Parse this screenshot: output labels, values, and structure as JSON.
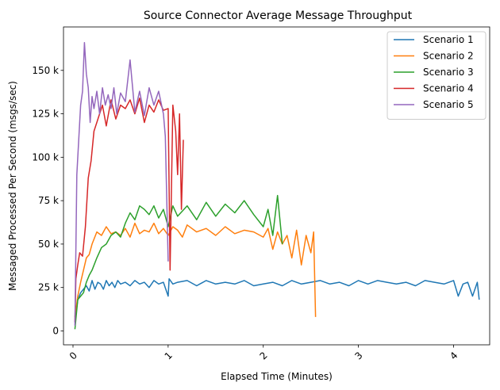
{
  "chart_data": {
    "type": "line",
    "title": "Source Connector Average Message Throughput",
    "xlabel": "Elapsed Time (Minutes)",
    "ylabel": "Messaged Processed Per Second (msgs/sec)",
    "xlim": [
      -0.1,
      4.38
    ],
    "ylim": [
      -8000,
      175000
    ],
    "xticks": [
      0,
      1,
      2,
      3,
      4
    ],
    "xtick_labels": [
      "0",
      "1",
      "2",
      "3",
      "4"
    ],
    "yticks": [
      0,
      25000,
      50000,
      75000,
      100000,
      125000,
      150000
    ],
    "ytick_labels": [
      "0",
      "25 k",
      "50 k",
      "75 k",
      "100 k",
      "125 k",
      "150 k"
    ],
    "grid": false,
    "legend_position": "top-right",
    "series": [
      {
        "name": "Scenario 1",
        "color": "#1f77b4",
        "x": [
          0.02,
          0.05,
          0.08,
          0.11,
          0.14,
          0.17,
          0.2,
          0.23,
          0.26,
          0.29,
          0.32,
          0.35,
          0.38,
          0.41,
          0.44,
          0.47,
          0.5,
          0.55,
          0.6,
          0.65,
          0.7,
          0.75,
          0.8,
          0.85,
          0.9,
          0.95,
          1.0,
          1.01,
          1.05,
          1.1,
          1.2,
          1.3,
          1.4,
          1.5,
          1.6,
          1.7,
          1.8,
          1.9,
          2.0,
          2.1,
          2.2,
          2.3,
          2.4,
          2.5,
          2.6,
          2.7,
          2.8,
          2.9,
          3.0,
          3.1,
          3.2,
          3.3,
          3.4,
          3.5,
          3.6,
          3.7,
          3.8,
          3.9,
          4.0,
          4.05,
          4.1,
          4.15,
          4.2,
          4.25,
          4.27
        ],
        "y": [
          5000,
          18000,
          22000,
          24000,
          26000,
          23000,
          29000,
          24000,
          28000,
          27000,
          24000,
          29000,
          26000,
          28000,
          25000,
          29000,
          27000,
          28000,
          26000,
          29000,
          27000,
          28000,
          25000,
          29000,
          27000,
          28000,
          20000,
          30000,
          27000,
          28000,
          29000,
          26000,
          29000,
          27000,
          28000,
          27000,
          29000,
          26000,
          27000,
          28000,
          26000,
          29000,
          27000,
          28000,
          29000,
          27000,
          28000,
          26000,
          29000,
          27000,
          29000,
          28000,
          27000,
          28000,
          26000,
          29000,
          28000,
          27000,
          29000,
          20000,
          27000,
          28000,
          20000,
          28000,
          18000
        ]
      },
      {
        "name": "Scenario 2",
        "color": "#ff7f0e",
        "x": [
          0.02,
          0.05,
          0.08,
          0.11,
          0.14,
          0.17,
          0.2,
          0.25,
          0.3,
          0.35,
          0.4,
          0.45,
          0.5,
          0.55,
          0.6,
          0.65,
          0.7,
          0.75,
          0.8,
          0.85,
          0.9,
          0.95,
          1.0,
          1.05,
          1.1,
          1.15,
          1.2,
          1.3,
          1.4,
          1.5,
          1.6,
          1.7,
          1.8,
          1.9,
          2.0,
          2.05,
          2.1,
          2.15,
          2.2,
          2.25,
          2.3,
          2.35,
          2.4,
          2.45,
          2.5,
          2.53,
          2.55
        ],
        "y": [
          8000,
          20000,
          28000,
          35000,
          42000,
          44000,
          50000,
          57000,
          55000,
          60000,
          56000,
          57000,
          55000,
          59000,
          54000,
          62000,
          56000,
          58000,
          57000,
          62000,
          56000,
          59000,
          55000,
          60000,
          58000,
          54000,
          61000,
          57000,
          59000,
          55000,
          60000,
          56000,
          58000,
          57000,
          54000,
          59000,
          47000,
          57000,
          50000,
          55000,
          42000,
          58000,
          38000,
          55000,
          45000,
          57000,
          8000
        ]
      },
      {
        "name": "Scenario 3",
        "color": "#2ca02c",
        "x": [
          0.02,
          0.05,
          0.08,
          0.11,
          0.14,
          0.17,
          0.2,
          0.25,
          0.3,
          0.35,
          0.4,
          0.45,
          0.5,
          0.55,
          0.6,
          0.65,
          0.7,
          0.75,
          0.8,
          0.85,
          0.9,
          0.95,
          1.0,
          1.05,
          1.1,
          1.2,
          1.3,
          1.4,
          1.5,
          1.6,
          1.7,
          1.8,
          1.9,
          2.0,
          2.05,
          2.1,
          2.15,
          2.2
        ],
        "y": [
          1000,
          18000,
          20000,
          22000,
          28000,
          32000,
          35000,
          42000,
          48000,
          50000,
          55000,
          57000,
          54000,
          62000,
          68000,
          64000,
          72000,
          70000,
          67000,
          72000,
          65000,
          70000,
          60000,
          72000,
          66000,
          72000,
          64000,
          74000,
          66000,
          73000,
          68000,
          75000,
          67000,
          60000,
          70000,
          55000,
          78000,
          50000
        ]
      },
      {
        "name": "Scenario 4",
        "color": "#d62728",
        "x": [
          0.02,
          0.03,
          0.05,
          0.07,
          0.1,
          0.13,
          0.16,
          0.19,
          0.22,
          0.25,
          0.28,
          0.31,
          0.35,
          0.4,
          0.45,
          0.5,
          0.55,
          0.6,
          0.65,
          0.7,
          0.75,
          0.8,
          0.85,
          0.9,
          0.95,
          1.0,
          1.02,
          1.05,
          1.08,
          1.1,
          1.12,
          1.14,
          1.16
        ],
        "y": [
          5000,
          30000,
          38000,
          45000,
          43000,
          60000,
          88000,
          98000,
          115000,
          120000,
          125000,
          130000,
          118000,
          133000,
          122000,
          130000,
          128000,
          133000,
          125000,
          134000,
          120000,
          130000,
          126000,
          133000,
          127000,
          128000,
          35000,
          130000,
          115000,
          90000,
          125000,
          70000,
          110000
        ]
      },
      {
        "name": "Scenario 5",
        "color": "#9467bd",
        "x": [
          0.02,
          0.04,
          0.06,
          0.08,
          0.1,
          0.12,
          0.14,
          0.16,
          0.18,
          0.2,
          0.22,
          0.25,
          0.28,
          0.31,
          0.34,
          0.37,
          0.4,
          0.43,
          0.46,
          0.5,
          0.55,
          0.6,
          0.65,
          0.7,
          0.75,
          0.8,
          0.85,
          0.9,
          0.95,
          0.97,
          1.0
        ],
        "y": [
          3000,
          90000,
          110000,
          130000,
          138000,
          166000,
          148000,
          140000,
          120000,
          135000,
          128000,
          138000,
          125000,
          140000,
          130000,
          136000,
          128000,
          140000,
          125000,
          137000,
          132000,
          156000,
          126000,
          138000,
          124000,
          140000,
          130000,
          138000,
          125000,
          112000,
          40000
        ]
      }
    ]
  }
}
